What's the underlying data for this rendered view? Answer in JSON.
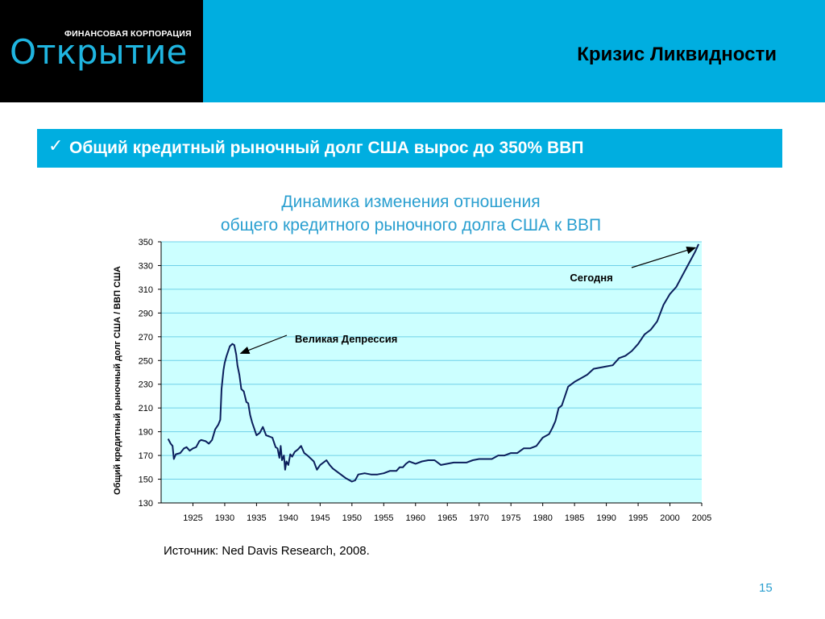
{
  "header": {
    "logo_subtitle": "ФИНАНСОВАЯ КОРПОРАЦИЯ",
    "logo_name": "Открытие",
    "title": "Кризис Ликвидности"
  },
  "point": {
    "check": "✓",
    "text": "Общий кредитный рыночный долг США вырос до 350% ВВП"
  },
  "chart_title_line1": "Динамика изменения отношения",
  "chart_title_line2": "общего кредитного рыночного долга США к ВВП",
  "footer": {
    "source": "Источник: Ned Davis Research, 2008.",
    "page_number": "15"
  },
  "colors": {
    "accent": "#00aee0",
    "title_blue": "#2a9fd0",
    "plot_bg": "#ccffff",
    "grid": "#6fd0e8",
    "line": "#0b1f5c"
  },
  "chart_data": {
    "type": "line",
    "ylabel": "Общий кредитный рыночный долг США / ВВП США",
    "xlabel": "",
    "ylim": [
      130,
      350
    ],
    "yticks": [
      130,
      150,
      170,
      190,
      210,
      230,
      250,
      270,
      290,
      310,
      330,
      350
    ],
    "xlim": [
      1920,
      2005
    ],
    "xticks": [
      1925,
      1930,
      1935,
      1940,
      1945,
      1950,
      1955,
      1960,
      1965,
      1970,
      1975,
      1980,
      1985,
      1990,
      1995,
      2000,
      2005
    ],
    "grid": true,
    "annotations": [
      {
        "text": "Великая Депрессия",
        "x": 1932.5,
        "y": 256
      },
      {
        "text": "Сегодня",
        "x": 2004,
        "y": 345
      }
    ],
    "series": [
      {
        "x": [
          1921.1,
          1921.5,
          1921.8,
          1922.0,
          1922.3,
          1923.0,
          1923.6,
          1924.0,
          1924.5,
          1925.0,
          1925.5,
          1926.0,
          1926.3,
          1927.0,
          1927.5,
          1928.0,
          1928.5,
          1929.0,
          1929.3,
          1929.5,
          1929.8,
          1930.0,
          1930.3,
          1930.8,
          1931.2,
          1931.5,
          1931.8,
          1932.0,
          1932.3,
          1932.6,
          1933.0,
          1933.4,
          1933.7,
          1934.0,
          1934.3,
          1935.0,
          1935.5,
          1936.0,
          1936.5,
          1937.0,
          1937.5,
          1938.0,
          1938.3,
          1938.6,
          1938.8,
          1939.0,
          1939.3,
          1939.5,
          1939.7,
          1940.0,
          1940.3,
          1940.6,
          1941.0,
          1941.5,
          1942.0,
          1942.5,
          1943.0,
          1944.0,
          1944.5,
          1945.0,
          1946.0,
          1946.5,
          1947.0,
          1948.0,
          1949.0,
          1950.0,
          1950.5,
          1951.0,
          1952.0,
          1953.0,
          1954.0,
          1955.0,
          1956.0,
          1957.0,
          1957.5,
          1958.0,
          1958.5,
          1959.0,
          1960.0,
          1961.0,
          1962.0,
          1963.0,
          1964.0,
          1965.0,
          1966.0,
          1967.0,
          1968.0,
          1969.0,
          1970.0,
          1971.0,
          1972.0,
          1973.0,
          1974.0,
          1975.0,
          1976.0,
          1977.0,
          1978.0,
          1979.0,
          1980.0,
          1981.0,
          1981.5,
          1982.0,
          1982.5,
          1983.0,
          1984.0,
          1985.0,
          1986.0,
          1987.0,
          1988.0,
          1989.0,
          1990.0,
          1991.0,
          1992.0,
          1993.0,
          1994.0,
          1995.0,
          1996.0,
          1997.0,
          1998.0,
          1999.0,
          2000.0,
          2001.0,
          2002.0,
          2003.0,
          2004.0,
          2004.5
        ],
        "values": [
          184,
          180,
          178,
          167,
          171,
          172,
          176,
          177,
          174,
          176,
          177,
          182,
          183,
          182,
          180,
          183,
          192,
          196,
          200,
          226,
          242,
          248,
          254,
          262,
          264,
          263,
          255,
          246,
          238,
          226,
          224,
          215,
          214,
          204,
          198,
          187,
          189,
          194,
          187,
          186,
          185,
          177,
          176,
          168,
          178,
          166,
          170,
          158,
          165,
          162,
          171,
          169,
          173,
          175,
          178,
          172,
          170,
          165,
          158,
          162,
          166,
          162,
          159,
          155,
          151,
          148,
          149,
          154,
          155,
          154,
          154,
          155,
          157,
          157,
          160,
          160,
          163,
          165,
          163,
          165,
          166,
          166,
          162,
          163,
          164,
          164,
          164,
          166,
          167,
          167,
          167,
          170,
          170,
          172,
          172,
          176,
          176,
          178,
          185,
          188,
          193,
          199,
          210,
          212,
          228,
          232,
          235,
          238,
          243,
          244,
          245,
          246,
          252,
          254,
          258,
          264,
          272,
          276,
          283,
          297,
          306,
          312,
          322,
          332,
          342,
          348
        ]
      }
    ]
  }
}
